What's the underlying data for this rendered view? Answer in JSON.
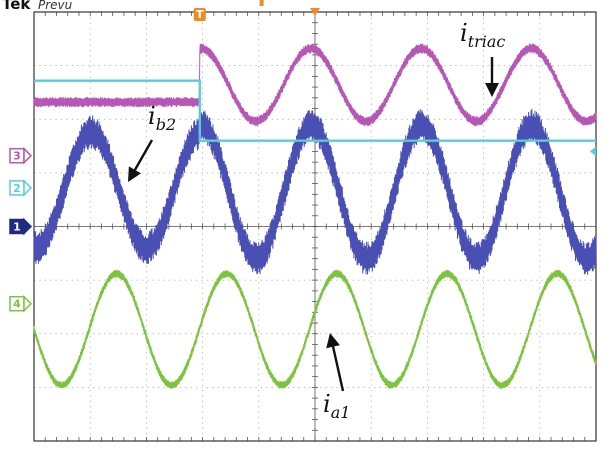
{
  "header": {
    "brand": "Tek",
    "mode": "Prevu"
  },
  "colors": {
    "ch1": "#4a4fb3",
    "ch2": "#5ccbd9",
    "ch3": "#b657b6",
    "ch4": "#7cc43e",
    "trigger": "#f08a24",
    "grid": "#9a9a9a",
    "frame": "#333333"
  },
  "markers": [
    {
      "id": "3",
      "name": "ch3-marker",
      "level": 0.33,
      "color": "#b657b6"
    },
    {
      "id": "2",
      "name": "ch2-marker",
      "level": 0.18,
      "color": "#5ccbd9"
    },
    {
      "id": "1",
      "name": "ch1-marker",
      "level": 0.0,
      "color": "#1f2a80"
    },
    {
      "id": "4",
      "name": "ch4-marker",
      "level": -0.36,
      "color": "#7cc43e"
    }
  ],
  "trigger": {
    "label": "T"
  },
  "annotations": [
    {
      "name": "annotation-itriac",
      "main": "i",
      "sub": "triac"
    },
    {
      "name": "annotation-ib2",
      "main": "i",
      "sub": "b2"
    },
    {
      "name": "annotation-ia1",
      "main": "i",
      "sub": "a1"
    }
  ],
  "chart_data": {
    "type": "line",
    "title": "",
    "xlabel": "",
    "ylabel": "",
    "xlim": [
      0,
      10
    ],
    "ylim": [
      -1,
      1
    ],
    "grid": true,
    "grid_divisions": {
      "x": 10,
      "y": 8
    },
    "series": [
      {
        "name": "1",
        "color": "#4a4fb3",
        "before_step": {
          "center": 0.17,
          "amplitude": 0.27
        },
        "after_step": {
          "center": 0.16,
          "amplitude": 0.31
        },
        "ripple": 0.07,
        "period_divisions": 1.96,
        "phase_division": 1.02,
        "step_division": 2.95
      },
      {
        "name": "2",
        "color": "#5ccbd9",
        "before_step": {
          "level": 0.68
        },
        "after_step": {
          "level": 0.4
        },
        "step_division": 2.95
      },
      {
        "name": "3",
        "color": "#b657b6",
        "before_step": {
          "level": 0.58,
          "amplitude": 0.0
        },
        "after_step": {
          "center": 0.66,
          "amplitude": 0.17
        },
        "ripple": 0.02,
        "period_divisions": 1.96,
        "phase_division": 4.93,
        "step_division": 2.95
      },
      {
        "name": "4",
        "color": "#7cc43e",
        "center": -0.48,
        "amplitude": 0.26,
        "ripple": 0.015,
        "period_divisions": 1.96,
        "phase_division": 1.47
      }
    ]
  }
}
